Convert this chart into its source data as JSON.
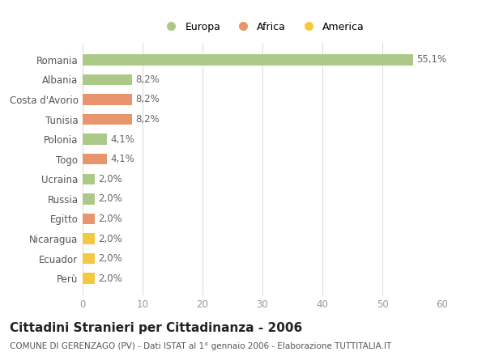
{
  "categories": [
    "Romania",
    "Albania",
    "Costa d'Avorio",
    "Tunisia",
    "Polonia",
    "Togo",
    "Ucraina",
    "Russia",
    "Egitto",
    "Nicaragua",
    "Ecuador",
    "Perù"
  ],
  "values": [
    55.1,
    8.2,
    8.2,
    8.2,
    4.1,
    4.1,
    2.0,
    2.0,
    2.0,
    2.0,
    2.0,
    2.0
  ],
  "labels": [
    "55,1%",
    "8,2%",
    "8,2%",
    "8,2%",
    "4,1%",
    "4,1%",
    "2,0%",
    "2,0%",
    "2,0%",
    "2,0%",
    "2,0%",
    "2,0%"
  ],
  "colors": [
    "#adc98a",
    "#adc98a",
    "#e8956d",
    "#e8956d",
    "#adc98a",
    "#e8956d",
    "#adc98a",
    "#adc98a",
    "#e8956d",
    "#f5c842",
    "#f5c842",
    "#f5c842"
  ],
  "legend_labels": [
    "Europa",
    "Africa",
    "America"
  ],
  "legend_colors": [
    "#adc98a",
    "#e8956d",
    "#f5c842"
  ],
  "title": "Cittadini Stranieri per Cittadinanza - 2006",
  "subtitle": "COMUNE DI GERENZAGO (PV) - Dati ISTAT al 1° gennaio 2006 - Elaborazione TUTTITALIA.IT",
  "xlim": [
    0,
    60
  ],
  "xticks": [
    0,
    10,
    20,
    30,
    40,
    50,
    60
  ],
  "background_color": "#ffffff",
  "grid_color": "#dddddd",
  "bar_label_fontsize": 8.5,
  "tick_fontsize": 8.5,
  "title_fontsize": 11,
  "subtitle_fontsize": 7.5
}
